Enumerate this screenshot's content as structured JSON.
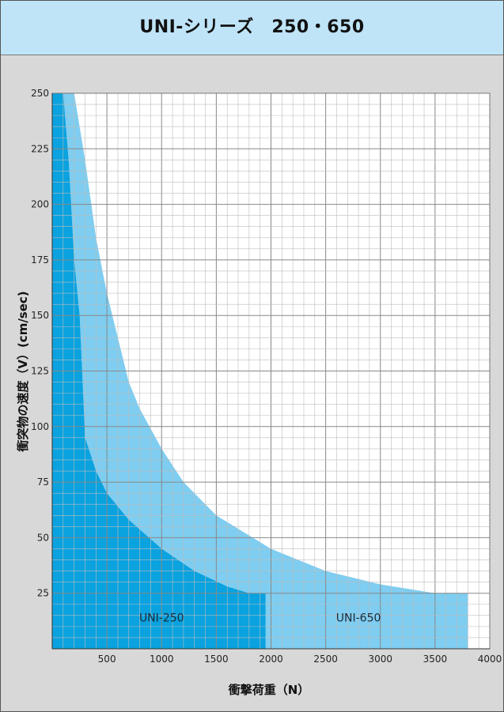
{
  "header": {
    "title": "UNI-シリーズ　250・650"
  },
  "chart_data": {
    "type": "area",
    "title": "UNI-シリーズ　250・650",
    "xlabel": "衝撃荷重（N）",
    "ylabel": "衝突物の速度（V）(cm/sec)",
    "xlim": [
      0,
      4000
    ],
    "ylim": [
      0,
      250
    ],
    "x_ticks": [
      500,
      1000,
      1500,
      2000,
      2500,
      3000,
      3500,
      4000
    ],
    "y_ticks": [
      25,
      50,
      75,
      100,
      125,
      150,
      175,
      200,
      225,
      250
    ],
    "grid": true,
    "series": [
      {
        "name": "UNI-650",
        "color": "#7fcdf0",
        "x": [
          0,
          100,
          200,
          300,
          400,
          500,
          600,
          700,
          800,
          1000,
          1200,
          1500,
          2000,
          2500,
          3000,
          3500,
          3800,
          3800,
          0
        ],
        "y": [
          250,
          250,
          250,
          220,
          185,
          160,
          140,
          120,
          108,
          90,
          75,
          60,
          45,
          35,
          29,
          25,
          25,
          0,
          0
        ]
      },
      {
        "name": "UNI-250",
        "color": "#0aa2df",
        "x": [
          0,
          100,
          150,
          200,
          250,
          300,
          400,
          500,
          700,
          1000,
          1300,
          1600,
          1800,
          1950,
          1950,
          0
        ],
        "y": [
          250,
          250,
          220,
          175,
          150,
          95,
          80,
          70,
          58,
          45,
          35,
          28,
          25,
          25,
          0,
          0
        ]
      }
    ]
  }
}
